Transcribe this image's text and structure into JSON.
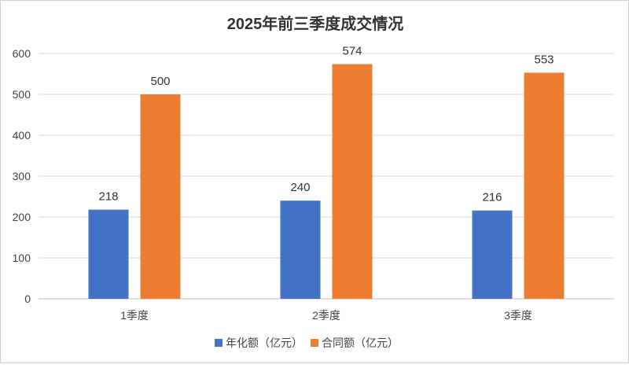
{
  "chart_data": {
    "type": "bar",
    "title": "2025年前三季度成交情况",
    "categories": [
      "1季度",
      "2季度",
      "3季度"
    ],
    "series": [
      {
        "name": "年化额（亿元）",
        "values": [
          218,
          240,
          216
        ],
        "color": "#4472c4"
      },
      {
        "name": "合同额（亿元）",
        "values": [
          500,
          574,
          553
        ],
        "color": "#ed7d31"
      }
    ],
    "yticks": [
      0,
      100,
      200,
      300,
      400,
      500,
      600
    ],
    "ylim": [
      0,
      600
    ],
    "xlabel": "",
    "ylabel": "",
    "grid": true,
    "legend": "bottom"
  }
}
